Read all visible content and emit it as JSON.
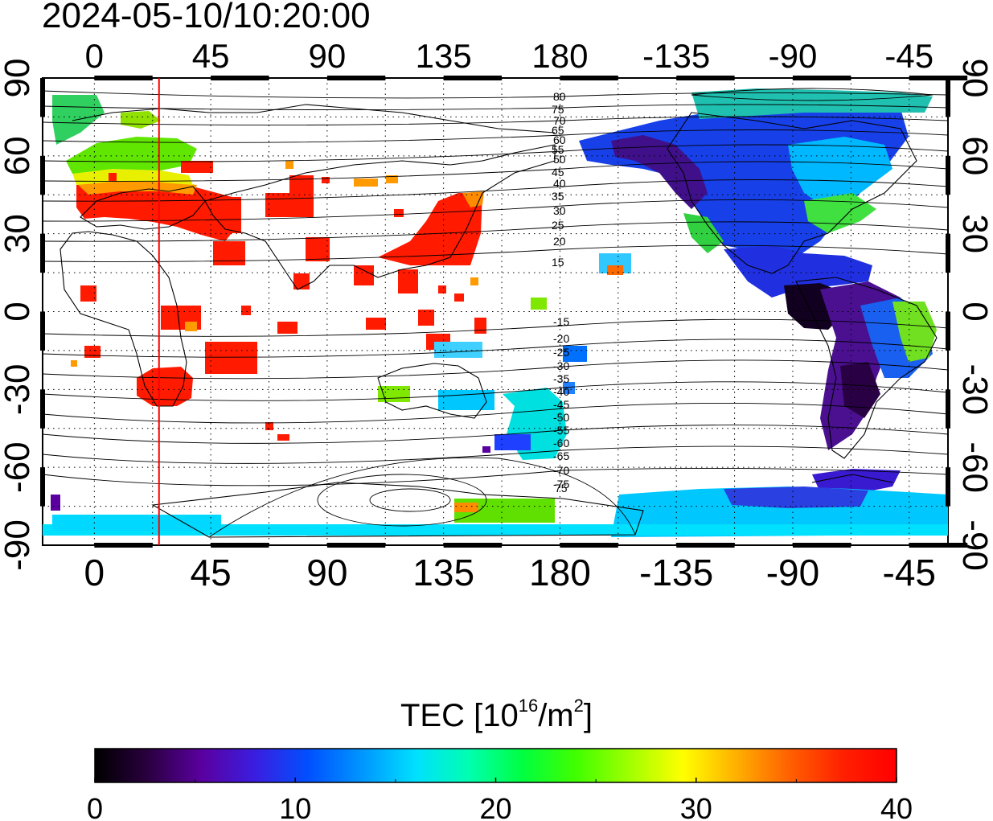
{
  "title": "2024-05-10/10:20:00",
  "map": {
    "lon_ticks_top": [
      "0",
      "45",
      "90",
      "135",
      "180",
      "-135",
      "-90",
      "-45"
    ],
    "lon_ticks_bottom": [
      "0",
      "45",
      "90",
      "135",
      "180",
      "-135",
      "-90",
      "-45"
    ],
    "lat_ticks": [
      "90",
      "60",
      "30",
      "0",
      "-30",
      "-60",
      "-90"
    ],
    "lat_range": [
      -90,
      90
    ],
    "lon_range_shifted": [
      -20,
      330
    ],
    "subsolar_longitude": 25,
    "subsolar_line_color": "#ff0000",
    "contour_labels_north": [
      "80",
      "75",
      "70",
      "65",
      "60",
      "55",
      "50",
      "45",
      "40",
      "35",
      "30",
      "25",
      "20",
      "15"
    ],
    "contour_labels_south": [
      "-15",
      "-20",
      "-25",
      "-30",
      "-35",
      "-40",
      "-45",
      "-50",
      "-55",
      "-60",
      "-65",
      "-70",
      "-75"
    ],
    "contour_labels_south_extra": [
      "75"
    ],
    "grid": "dotted"
  },
  "colorbar": {
    "label_main": "TEC  [10",
    "label_exp1": "16",
    "label_mid": "/m",
    "label_exp2": "2",
    "label_end": "]",
    "min": 0,
    "max": 40,
    "ticks": [
      "0",
      "10",
      "20",
      "30",
      "40"
    ],
    "colors": [
      "#000000",
      "#2a0040",
      "#5a00a0",
      "#3a1ee0",
      "#0050ff",
      "#0096ff",
      "#00e0ff",
      "#00ffb0",
      "#00ff40",
      "#40ff00",
      "#a0ff00",
      "#ffff00",
      "#ffb000",
      "#ff6000",
      "#ff2000",
      "#ff0000"
    ]
  }
}
